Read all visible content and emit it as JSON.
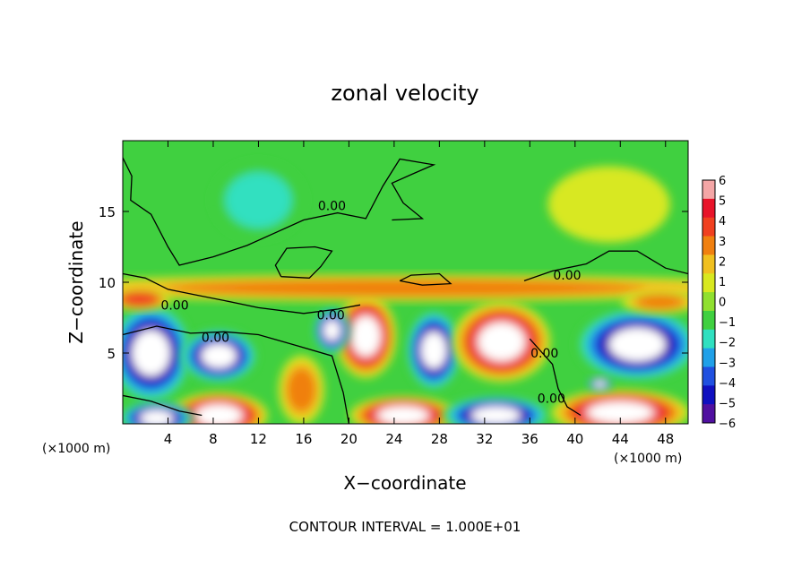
{
  "chart_data": {
    "type": "heatmap",
    "title": "zonal velocity",
    "xlabel": "X−coordinate",
    "ylabel": "Z−coordinate",
    "x_unit": "(×1000 m)",
    "x_unit_right": "(×1000 m)",
    "footer": "CONTOUR INTERVAL = 1.000E+01",
    "xlim": [
      0,
      50
    ],
    "ylim": [
      0,
      20
    ],
    "x_ticks": [
      4,
      8,
      12,
      16,
      20,
      24,
      28,
      32,
      36,
      40,
      44,
      48
    ],
    "y_ticks": [
      5,
      10,
      15
    ],
    "colorbar": {
      "levels": [
        6,
        5,
        4,
        3,
        2,
        1,
        0,
        -1,
        -2,
        -3,
        -4,
        -5,
        -6
      ],
      "labels": [
        "6",
        "5",
        "4",
        "3",
        "2",
        "1",
        "0",
        "−1",
        "−2",
        "−3",
        "−4",
        "−5",
        "−6"
      ],
      "colors": [
        "#f4a6a6",
        "#e8142a",
        "#f04020",
        "#f08010",
        "#f0c020",
        "#d8e820",
        "#90e030",
        "#40d040",
        "#30e0c0",
        "#20a0e8",
        "#2050e0",
        "#1010c0",
        "#5010a0"
      ]
    },
    "contour_labels": [
      {
        "text": "0.00",
        "x": 18.5,
        "z": 15.4
      },
      {
        "text": "0.00",
        "x": 4.6,
        "z": 8.4
      },
      {
        "text": "0.00",
        "x": 8.2,
        "z": 6.1
      },
      {
        "text": "0.00",
        "x": 18.4,
        "z": 7.7
      },
      {
        "text": "0.00",
        "x": 39.3,
        "z": 10.5
      },
      {
        "text": "0.00",
        "x": 37.3,
        "z": 5.0
      },
      {
        "text": "0.00",
        "x": 37.9,
        "z": 1.8
      }
    ],
    "blobs": [
      {
        "x": 2.5,
        "z": 5.0,
        "rx": 2.7,
        "rz": 2.6,
        "v": -6
      },
      {
        "x": 8.5,
        "z": 4.8,
        "rx": 2.5,
        "rz": 1.4,
        "v": -6
      },
      {
        "x": 21.5,
        "z": 6.2,
        "rx": 2.0,
        "rz": 2.2,
        "v": 6
      },
      {
        "x": 18.5,
        "z": 6.6,
        "rx": 1.2,
        "rz": 1.2,
        "v": -6
      },
      {
        "x": 27.5,
        "z": 5.2,
        "rx": 1.8,
        "rz": 2.1,
        "v": -6
      },
      {
        "x": 33.5,
        "z": 5.8,
        "rx": 3.2,
        "rz": 2.1,
        "v": 6
      },
      {
        "x": 45.5,
        "z": 5.6,
        "rx": 4.0,
        "rz": 1.9,
        "v": -6
      },
      {
        "x": 8.5,
        "z": 0.6,
        "rx": 3.2,
        "rz": 1.2,
        "v": 6
      },
      {
        "x": 3.0,
        "z": 0.4,
        "rx": 2.4,
        "rz": 0.9,
        "v": -6
      },
      {
        "x": 24.8,
        "z": 0.6,
        "rx": 3.5,
        "rz": 1.0,
        "v": 6
      },
      {
        "x": 33.0,
        "z": 0.6,
        "rx": 3.5,
        "rz": 1.0,
        "v": -6
      },
      {
        "x": 44.0,
        "z": 0.8,
        "rx": 4.5,
        "rz": 1.2,
        "v": 6
      },
      {
        "x": 15.8,
        "z": 2.4,
        "rx": 1.5,
        "rz": 1.8,
        "v": 3
      },
      {
        "x": 42.2,
        "z": 2.8,
        "rx": 0.8,
        "rz": 0.4,
        "v": -6
      },
      {
        "x": 12.0,
        "z": 15.8,
        "rx": 3.0,
        "rz": 2.0,
        "v": -2
      },
      {
        "x": 43.0,
        "z": 15.5,
        "rx": 4.0,
        "rz": 2.0,
        "v": 1.5
      },
      {
        "x": 25.0,
        "z": 9.6,
        "rx": 25.0,
        "rz": 0.7,
        "v": 3
      },
      {
        "x": 1.5,
        "z": 8.8,
        "rx": 2.0,
        "rz": 0.6,
        "v": 4
      },
      {
        "x": 47.5,
        "z": 8.6,
        "rx": 2.5,
        "rz": 0.6,
        "v": 3
      }
    ]
  }
}
